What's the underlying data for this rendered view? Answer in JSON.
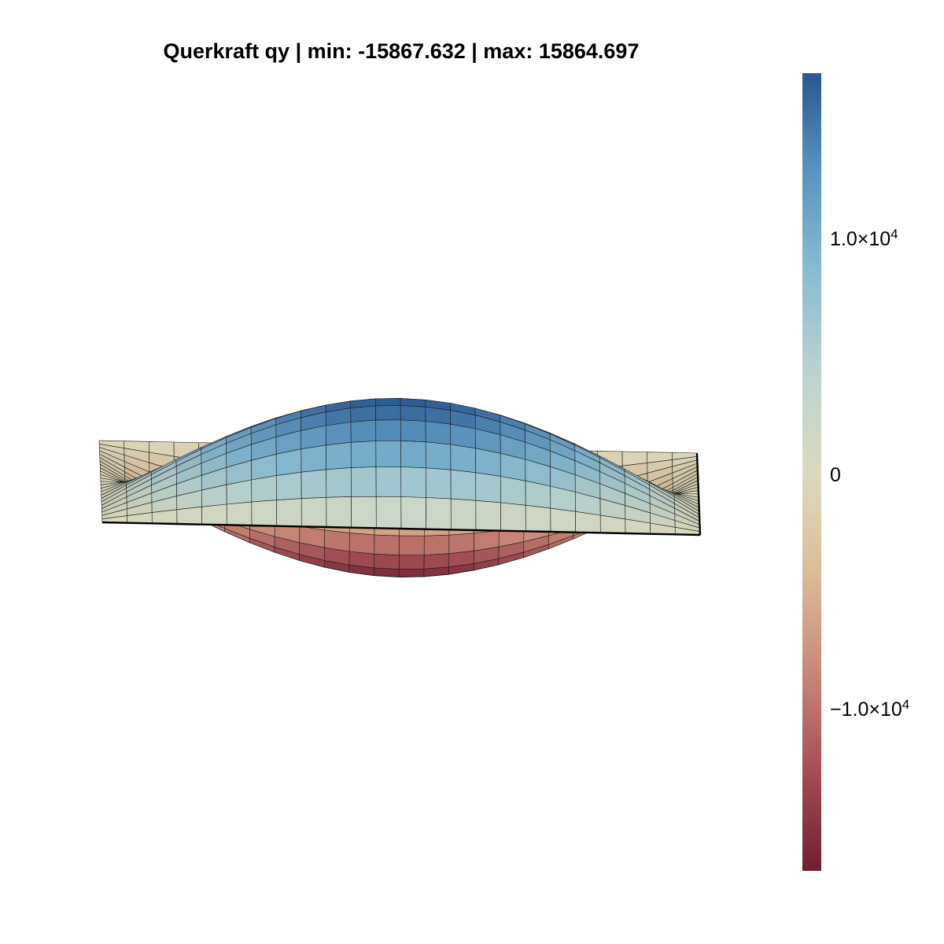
{
  "chart_data": {
    "type": "surface3d",
    "title": "Querkraft qy | min: -15867.632 | max: 15864.697",
    "value_range": [
      -15867.632,
      15864.697
    ],
    "colormap": [
      "#6e1f30",
      "#a44e55",
      "#c98876",
      "#dcbd98",
      "#dcd9bd",
      "#b9d3d0",
      "#88bcd2",
      "#5b94c0",
      "#2a5890"
    ],
    "colorbar": {
      "ticks": [
        {
          "value": 10000,
          "mantissa": "1.0×10",
          "exponent": "4"
        },
        {
          "value": 0,
          "mantissa": "0",
          "exponent": ""
        },
        {
          "value": -10000,
          "mantissa": "−1.0×10",
          "exponent": "4"
        }
      ]
    },
    "grid": {
      "nx": 25,
      "ny": 25,
      "x_range": [
        0,
        1
      ],
      "y_range": [
        0,
        1
      ]
    },
    "grid_lines": true,
    "axes_visible": false
  }
}
